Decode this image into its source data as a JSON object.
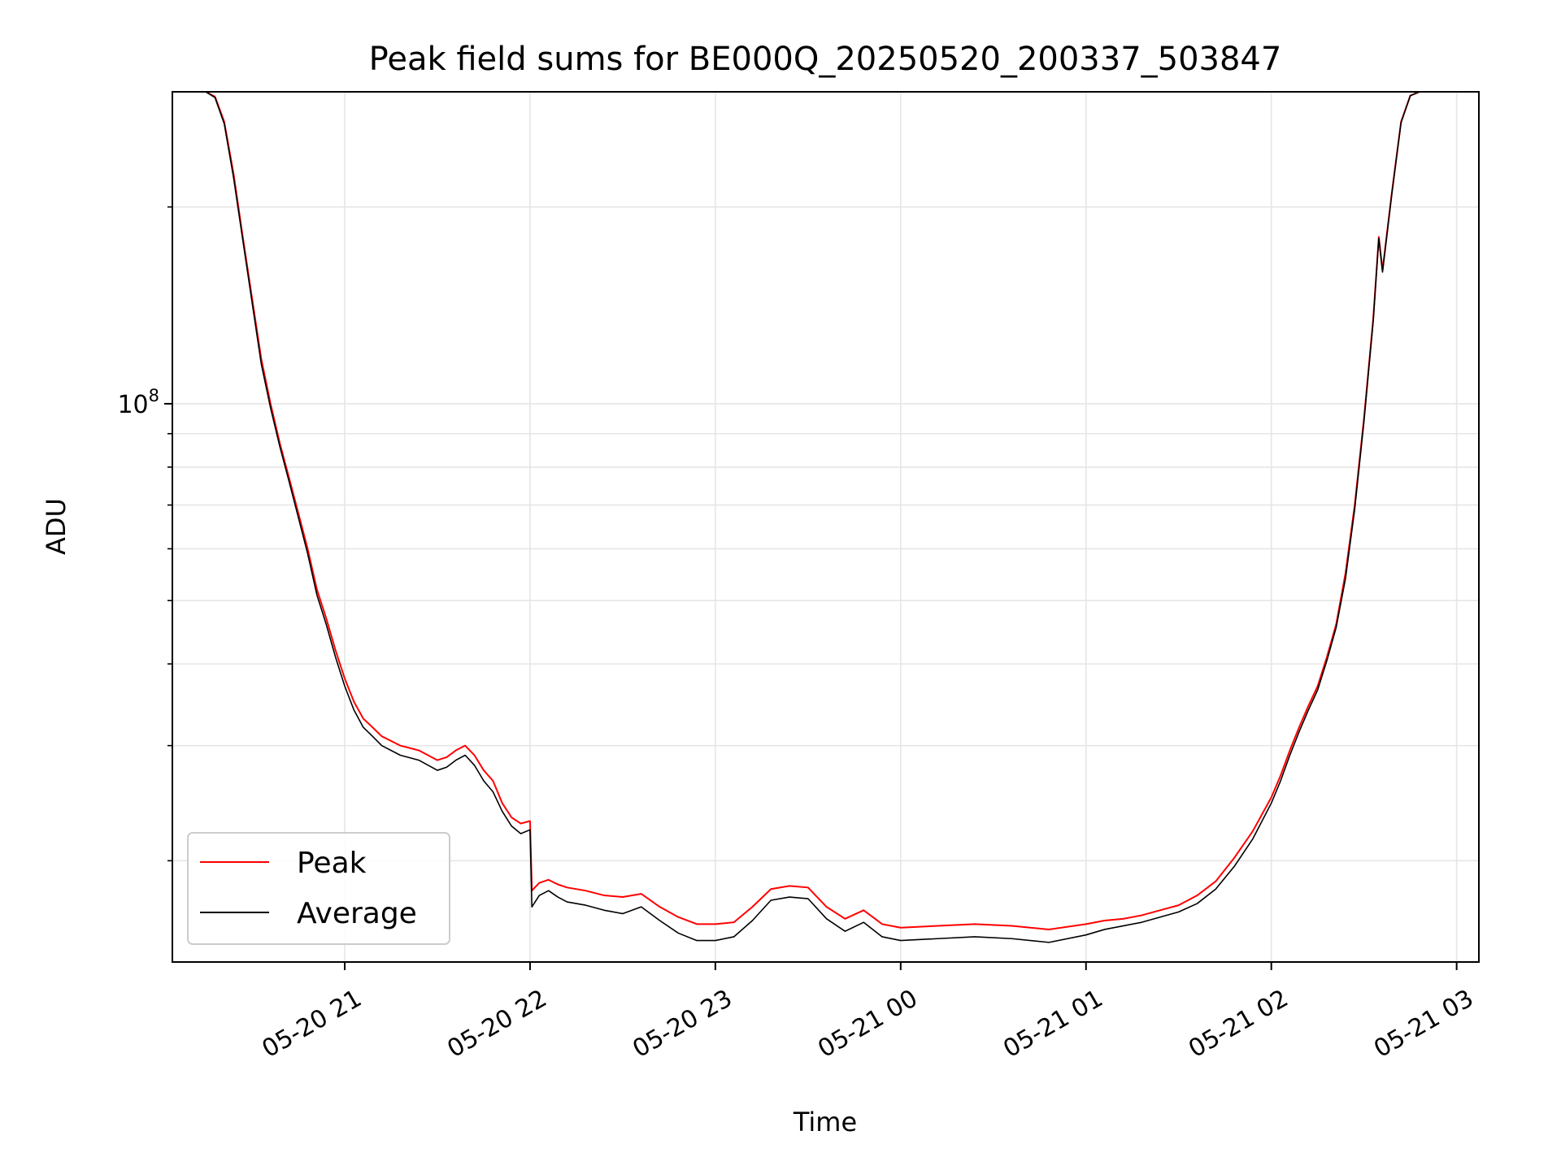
{
  "chart_data": {
    "type": "line",
    "title": "Peak field sums for BE000Q_20250520_200337_503847",
    "xlabel": "Time",
    "ylabel": "ADU",
    "yscale": "log",
    "ylim": [
      14000000,
      300000000
    ],
    "xlim": [
      20.07,
      27.12
    ],
    "grid": true,
    "legend_position": "lower-left",
    "x_ticks": [
      {
        "value": 21,
        "label": "05-20 21"
      },
      {
        "value": 22,
        "label": "05-20 22"
      },
      {
        "value": 23,
        "label": "05-20 23"
      },
      {
        "value": 24,
        "label": "05-21 00"
      },
      {
        "value": 25,
        "label": "05-21 01"
      },
      {
        "value": 26,
        "label": "05-21 02"
      },
      {
        "value": 27,
        "label": "05-21 03"
      }
    ],
    "y_major_ticks": [
      {
        "value": 100000000,
        "base": "10",
        "exp": "8"
      }
    ],
    "y_minor_ticks": [
      20000000,
      30000000,
      40000000,
      50000000,
      60000000,
      70000000,
      80000000,
      90000000,
      200000000
    ],
    "series": [
      {
        "name": "Peak",
        "color": "#ff0000",
        "x": [
          20.07,
          20.25,
          20.3,
          20.35,
          20.4,
          20.45,
          20.5,
          20.55,
          20.6,
          20.65,
          20.7,
          20.75,
          20.8,
          20.85,
          20.9,
          20.95,
          21.0,
          21.05,
          21.1,
          21.15,
          21.2,
          21.3,
          21.4,
          21.5,
          21.55,
          21.6,
          21.65,
          21.7,
          21.75,
          21.8,
          21.85,
          21.9,
          21.95,
          22.0,
          22.01,
          22.05,
          22.1,
          22.15,
          22.2,
          22.3,
          22.4,
          22.5,
          22.6,
          22.7,
          22.8,
          22.9,
          23.0,
          23.1,
          23.2,
          23.3,
          23.4,
          23.5,
          23.6,
          23.7,
          23.8,
          23.9,
          24.0,
          24.2,
          24.4,
          24.6,
          24.8,
          25.0,
          25.1,
          25.2,
          25.3,
          25.4,
          25.5,
          25.6,
          25.7,
          25.8,
          25.9,
          26.0,
          26.05,
          26.1,
          26.15,
          26.2,
          26.25,
          26.3,
          26.35,
          26.4,
          26.45,
          26.5,
          26.55,
          26.58,
          26.6,
          26.65,
          26.7,
          26.75,
          26.8,
          27.12
        ],
        "y": [
          300000000,
          300000000,
          295000000,
          270000000,
          225000000,
          180000000,
          145000000,
          117000000,
          100000000,
          87000000,
          77000000,
          68000000,
          60000000,
          52000000,
          47000000,
          42000000,
          38000000,
          35000000,
          33000000,
          32000000,
          31000000,
          30000000,
          29500000,
          28500000,
          28800000,
          29500000,
          30000000,
          29000000,
          27500000,
          26500000,
          24500000,
          23300000,
          22800000,
          23000000,
          18000000,
          18500000,
          18700000,
          18400000,
          18200000,
          18000000,
          17700000,
          17600000,
          17800000,
          17000000,
          16400000,
          16000000,
          16000000,
          16100000,
          17000000,
          18100000,
          18300000,
          18200000,
          17000000,
          16300000,
          16800000,
          16000000,
          15800000,
          15900000,
          16000000,
          15900000,
          15700000,
          16000000,
          16200000,
          16300000,
          16500000,
          16800000,
          17100000,
          17700000,
          18600000,
          20200000,
          22200000,
          25000000,
          27000000,
          29500000,
          32000000,
          34500000,
          37000000,
          41000000,
          46000000,
          55000000,
          70000000,
          95000000,
          135000000,
          180000000,
          160000000,
          210000000,
          270000000,
          296000000,
          300000000,
          300000000
        ]
      },
      {
        "name": "Average",
        "color": "#000000",
        "x": [
          20.07,
          20.25,
          20.3,
          20.35,
          20.4,
          20.45,
          20.5,
          20.55,
          20.6,
          20.65,
          20.7,
          20.75,
          20.8,
          20.85,
          20.9,
          20.95,
          21.0,
          21.05,
          21.1,
          21.15,
          21.2,
          21.3,
          21.4,
          21.5,
          21.55,
          21.6,
          21.65,
          21.7,
          21.75,
          21.8,
          21.85,
          21.9,
          21.95,
          22.0,
          22.01,
          22.05,
          22.1,
          22.15,
          22.2,
          22.3,
          22.4,
          22.5,
          22.6,
          22.7,
          22.8,
          22.9,
          23.0,
          23.1,
          23.2,
          23.3,
          23.4,
          23.5,
          23.6,
          23.7,
          23.8,
          23.9,
          24.0,
          24.2,
          24.4,
          24.6,
          24.8,
          25.0,
          25.1,
          25.2,
          25.3,
          25.4,
          25.5,
          25.6,
          25.7,
          25.8,
          25.9,
          26.0,
          26.05,
          26.1,
          26.15,
          26.2,
          26.25,
          26.3,
          26.35,
          26.4,
          26.45,
          26.5,
          26.55,
          26.58,
          26.6,
          26.65,
          26.7,
          26.75,
          26.8,
          27.12
        ],
        "y": [
          300000000,
          300000000,
          294000000,
          268000000,
          222000000,
          178000000,
          143000000,
          115000000,
          98500000,
          86000000,
          76000000,
          67000000,
          59000000,
          51000000,
          46000000,
          41000000,
          37000000,
          34000000,
          32000000,
          31000000,
          30000000,
          29000000,
          28500000,
          27500000,
          27800000,
          28500000,
          29000000,
          28000000,
          26500000,
          25500000,
          23800000,
          22600000,
          22000000,
          22300000,
          17000000,
          17700000,
          18000000,
          17600000,
          17300000,
          17100000,
          16800000,
          16600000,
          17000000,
          16200000,
          15500000,
          15100000,
          15100000,
          15300000,
          16200000,
          17400000,
          17600000,
          17500000,
          16300000,
          15600000,
          16100000,
          15300000,
          15100000,
          15200000,
          15300000,
          15200000,
          15000000,
          15400000,
          15700000,
          15900000,
          16100000,
          16400000,
          16700000,
          17200000,
          18100000,
          19600000,
          21600000,
          24500000,
          26500000,
          29000000,
          31500000,
          34000000,
          36500000,
          40500000,
          45500000,
          54000000,
          69000000,
          94000000,
          134000000,
          179000000,
          159000000,
          209000000,
          269000000,
          296000000,
          300000000,
          300000000
        ]
      }
    ]
  }
}
